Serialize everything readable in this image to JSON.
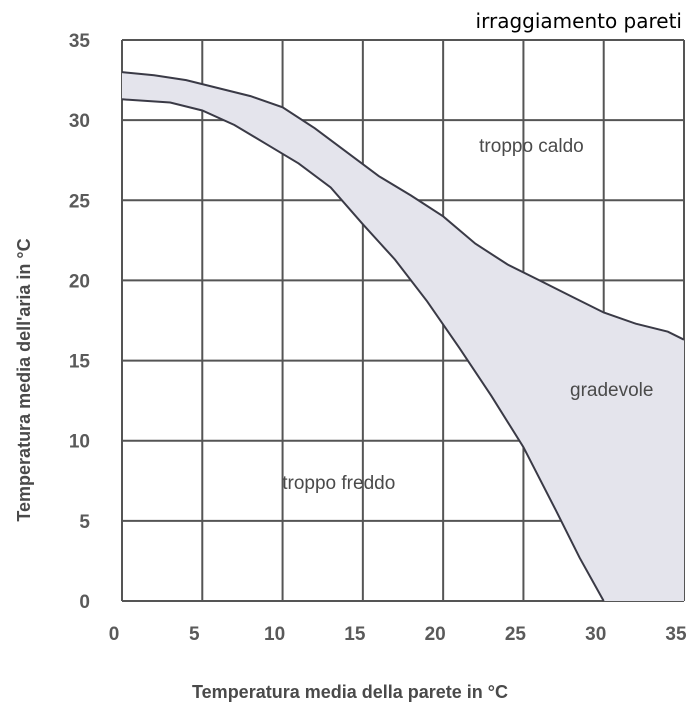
{
  "chart_data": {
    "type": "area",
    "title": "irraggiamento pareti",
    "xlabel": "Temperatura media della parete in °C",
    "ylabel": "Temperatura media dell'aria in °C",
    "xlim": [
      0,
      35
    ],
    "ylim": [
      0,
      35
    ],
    "x_ticks": [
      "0",
      "5",
      "10",
      "15",
      "20",
      "25",
      "30",
      "35"
    ],
    "y_ticks": [
      "0",
      "5",
      "10",
      "15",
      "20",
      "25",
      "30",
      "35"
    ],
    "grid": true,
    "series": [
      {
        "role": "upper_bound",
        "points": [
          [
            0,
            33
          ],
          [
            2,
            32.8
          ],
          [
            4,
            32.5
          ],
          [
            6,
            32
          ],
          [
            8,
            31.5
          ],
          [
            10,
            30.8
          ],
          [
            12,
            29.5
          ],
          [
            14,
            28
          ],
          [
            16,
            26.5
          ],
          [
            18,
            25.3
          ],
          [
            20,
            24
          ],
          [
            22,
            22.3
          ],
          [
            24,
            21
          ],
          [
            26,
            20
          ],
          [
            28,
            19
          ],
          [
            30,
            18
          ],
          [
            32,
            17.3
          ],
          [
            34,
            16.8
          ],
          [
            35,
            16.3
          ]
        ]
      },
      {
        "role": "lower_bound",
        "points": [
          [
            0,
            31.3
          ],
          [
            3,
            31.1
          ],
          [
            5,
            30.6
          ],
          [
            7,
            29.7
          ],
          [
            9,
            28.5
          ],
          [
            11,
            27.3
          ],
          [
            13,
            25.8
          ],
          [
            15,
            23.5
          ],
          [
            17,
            21.3
          ],
          [
            19,
            18.7
          ],
          [
            21,
            15.8
          ],
          [
            23,
            12.8
          ],
          [
            25,
            9.6
          ],
          [
            27,
            5.7
          ],
          [
            28.5,
            2.7
          ],
          [
            30,
            0
          ]
        ]
      }
    ],
    "fill_color": "#e4e4ec",
    "line_color": "#3a3a46",
    "grid_color": "#555555",
    "regions": [
      {
        "label": "troppo caldo",
        "x": 25.5,
        "y": 28
      },
      {
        "label": "gradevole",
        "x": 30.5,
        "y": 12.8
      },
      {
        "label": "troppo freddo",
        "x": 13.5,
        "y": 7
      }
    ]
  }
}
